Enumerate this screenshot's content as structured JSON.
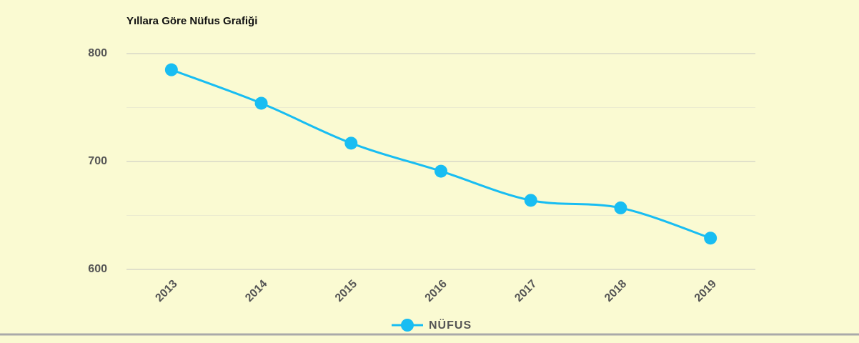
{
  "chart_data": {
    "type": "line",
    "title": "Yıllara Göre Nüfus Grafiği",
    "categories": [
      "2013",
      "2014",
      "2015",
      "2016",
      "2017",
      "2018",
      "2019"
    ],
    "series": [
      {
        "name": "NÜFUS",
        "color": "#18bdf2",
        "values": [
          785,
          754,
          717,
          691,
          664,
          657,
          629
        ]
      }
    ],
    "ylim": [
      600,
      800
    ],
    "yticks": [
      600,
      700,
      800
    ],
    "minor_yticks": [
      650,
      750
    ],
    "grid": true,
    "legend": "bottom",
    "smooth": true
  }
}
